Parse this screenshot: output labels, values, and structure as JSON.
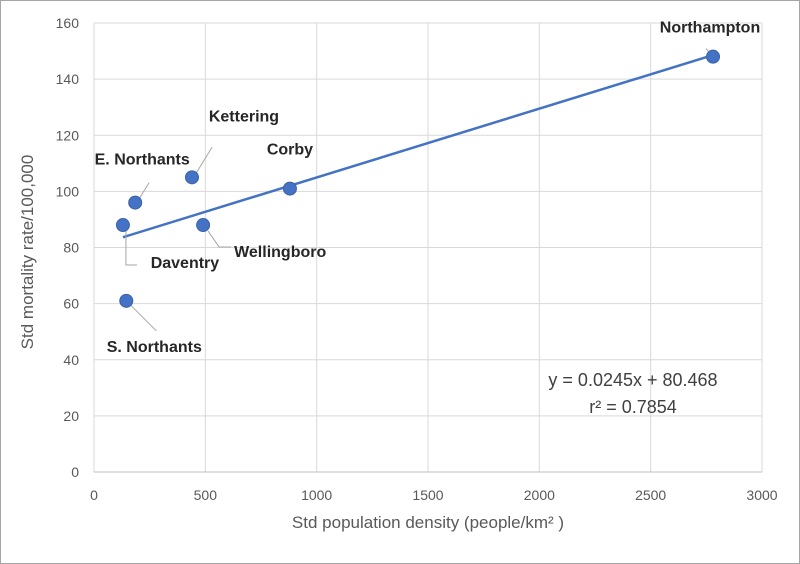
{
  "chart_data": {
    "type": "scatter",
    "title": "",
    "xlabel": "Std population density (people/km² )",
    "ylabel": "Std mortality rate/100,000",
    "xlim": [
      0,
      3000
    ],
    "ylim": [
      0,
      160
    ],
    "xticks": [
      0,
      500,
      1000,
      1500,
      2000,
      2500,
      3000
    ],
    "yticks": [
      0,
      20,
      40,
      60,
      80,
      100,
      120,
      140,
      160
    ],
    "grid": true,
    "marker_color": "#4472c4",
    "line_color": "#4472c4",
    "points": [
      {
        "label": "Northampton",
        "x": 2780,
        "y": 148
      },
      {
        "label": "Kettering",
        "x": 440,
        "y": 105
      },
      {
        "label": "Corby",
        "x": 880,
        "y": 101
      },
      {
        "label": "E. Northants",
        "x": 185,
        "y": 96
      },
      {
        "label": "Daventry",
        "x": 130,
        "y": 88
      },
      {
        "label": "Wellingboro",
        "x": 490,
        "y": 88
      },
      {
        "label": "S. Northants",
        "x": 145,
        "y": 61
      }
    ],
    "trendline": {
      "slope": 0.0245,
      "intercept": 80.468,
      "x_start": 130,
      "x_end": 2780
    },
    "equation": "y = 0.0245x + 80.468",
    "r_squared": "r² = 0.7854"
  }
}
